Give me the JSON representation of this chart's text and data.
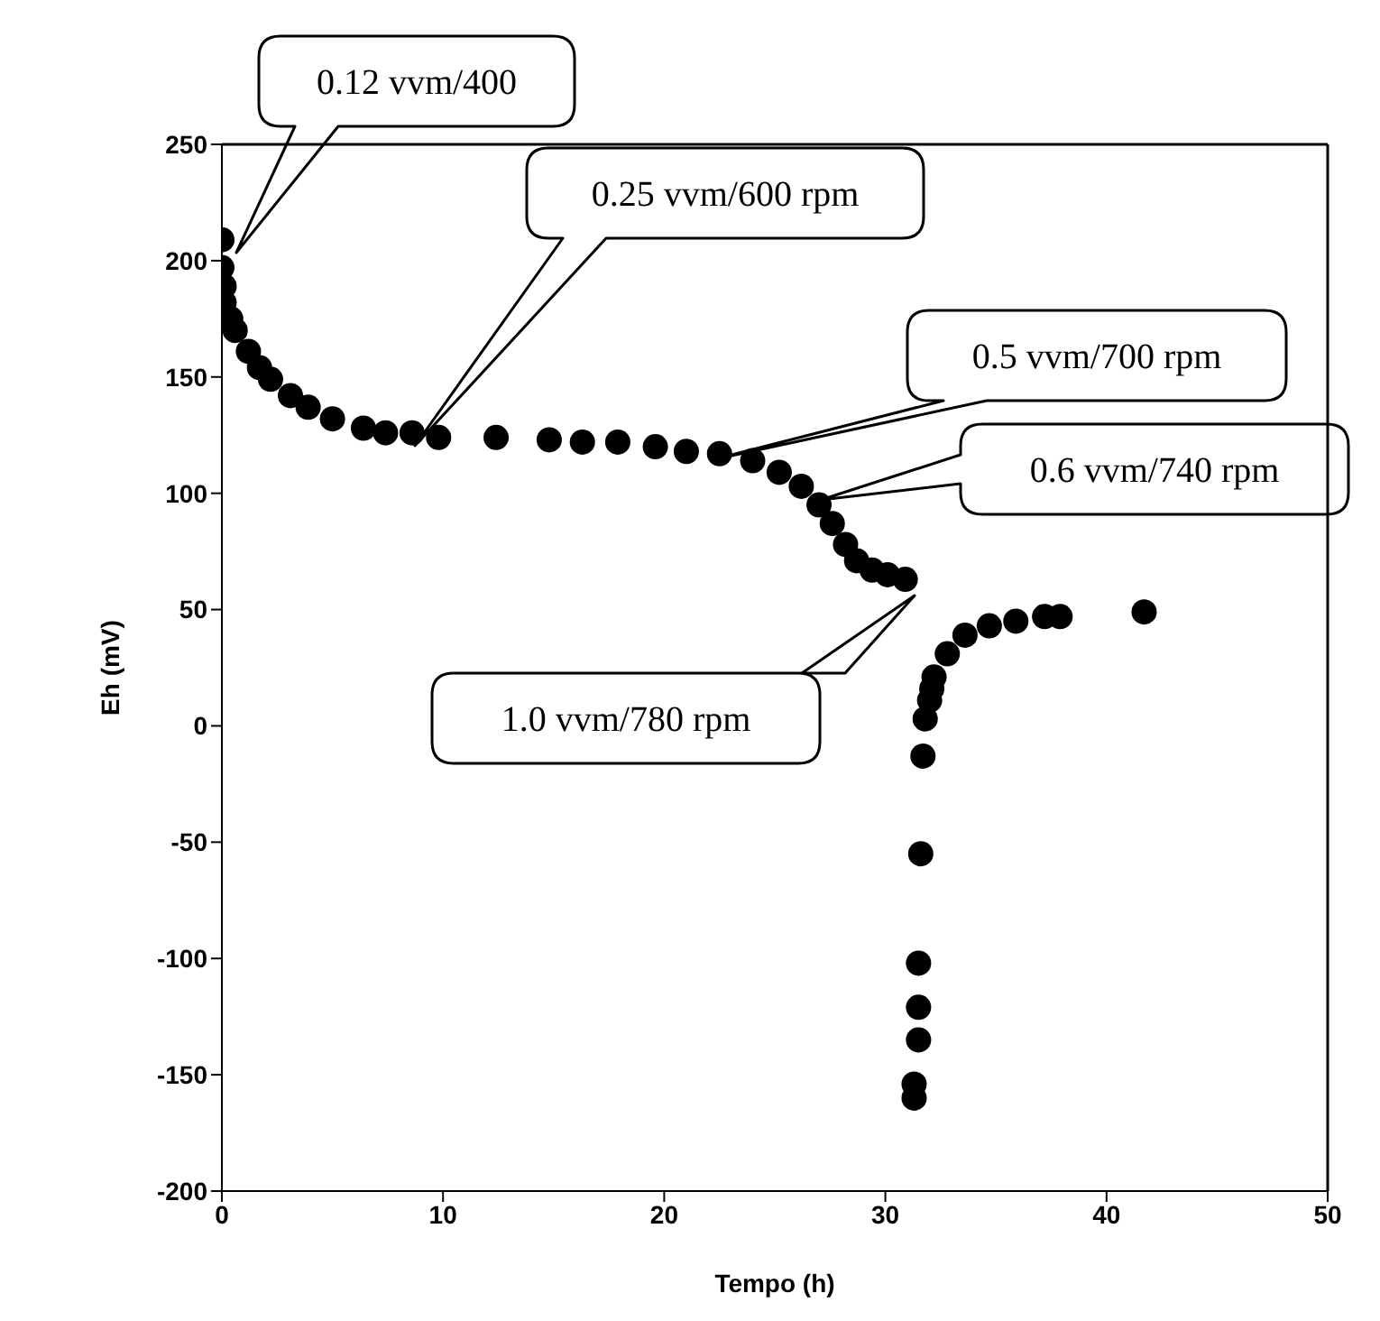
{
  "chart_data": {
    "type": "scatter",
    "xlabel": "Tempo (h)",
    "ylabel": "Eh (mV)",
    "xlim": [
      0,
      50
    ],
    "xticks": [
      0,
      10,
      20,
      30,
      40,
      50
    ],
    "ylim": [
      -200,
      250
    ],
    "yticks": [
      -200,
      -150,
      -100,
      -50,
      0,
      50,
      100,
      150,
      200,
      250
    ],
    "grid": false,
    "legend": false,
    "marker": "circle",
    "series": [
      {
        "color": "#000000",
        "x": [
          0,
          0,
          0.1,
          0.1,
          0.4,
          0.6,
          1.2,
          1.7,
          2.2,
          3.1,
          3.9,
          5,
          6.4,
          7.4,
          8.6,
          9.8,
          12.4,
          14.8,
          16.3,
          17.9,
          19.6,
          21,
          22.5,
          24,
          25.2,
          26.2,
          27,
          27.6,
          28.2,
          28.7,
          29.4,
          30.1,
          30.9,
          31.3,
          31.3,
          31.5,
          31.5,
          31.5,
          31.6,
          31.7,
          31.8,
          32,
          32.1,
          32.2,
          32.8,
          33.6,
          34.7,
          35.9,
          37.2,
          37.9,
          41.7
        ],
        "values": [
          209,
          197,
          189,
          182,
          175,
          170,
          161,
          154,
          149,
          142,
          137,
          132,
          128,
          126,
          126,
          124,
          124,
          123,
          122,
          122,
          120,
          118,
          117,
          114,
          109,
          103,
          95,
          87,
          78,
          71,
          67,
          65,
          63,
          -160,
          -154,
          -135,
          -121,
          -102,
          -55,
          -13,
          3,
          11,
          16,
          21,
          31,
          39,
          43,
          45,
          47,
          47,
          49
        ]
      }
    ],
    "annotations": [
      "0.12 vvm/400",
      "0.25 vvm/600 rpm",
      "0.5 vvm/700 rpm",
      "0.6 vvm/740 rpm",
      "1.0 vvm/780 rpm"
    ]
  }
}
